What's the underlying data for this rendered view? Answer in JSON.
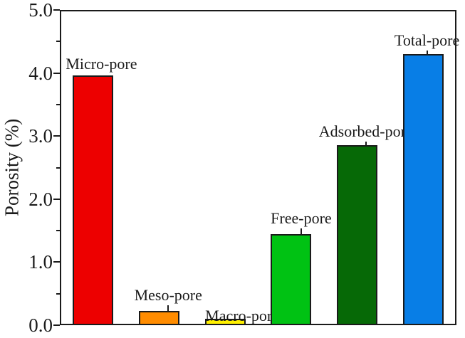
{
  "chart_data": {
    "type": "bar",
    "title": "",
    "xlabel": "",
    "ylabel": "Porosity (%)",
    "categories": [
      "Micro-pore",
      "Meso-pore",
      "Macro-pore",
      "Free-pore",
      "Adsorbed-pore",
      "Total-pore"
    ],
    "values": [
      3.96,
      0.23,
      0.1,
      1.44,
      2.86,
      4.3
    ],
    "bar_colors": [
      "#ed0000",
      "#ff8c00",
      "#fff000",
      "#00c213",
      "#066906",
      "#087ee6"
    ],
    "bar_border_color": "#1a1a1a",
    "axis_color": "#1a1a1a",
    "background_color": "#ffffff",
    "ylim": [
      0,
      5
    ],
    "ytick_values": [
      0,
      1,
      2,
      3,
      4,
      5
    ],
    "ytick_labels": [
      "0.0",
      "1.0",
      "2.0",
      "3.0",
      "4.0",
      "5.0"
    ],
    "minor_tick_step": 0.5,
    "grid": false,
    "legend": "none",
    "bar_labels_position": "above-bar",
    "annotations": [
      {
        "dx": 12,
        "leader": 2
      },
      {
        "dx": 13,
        "leader": 8
      },
      {
        "dx": 24,
        "leader": -10
      },
      {
        "dx": 14,
        "leader": 8
      },
      {
        "dx": 12,
        "leader": 5
      },
      {
        "dx": 5,
        "leader": 5
      }
    ]
  }
}
